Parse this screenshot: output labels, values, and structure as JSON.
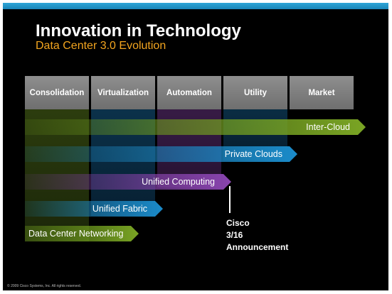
{
  "title": "Innovation in Technology",
  "subtitle": "Data Center 3.0 Evolution",
  "columns": [
    "Consolidation",
    "Virtualization",
    "Automation",
    "Utility",
    "Market"
  ],
  "arrows": [
    {
      "label": "Inter-Cloud",
      "color": "#6e9a1e"
    },
    {
      "label": "Private Clouds",
      "color": "#1d86c0"
    },
    {
      "label": "Unified Computing",
      "color": "#7e3fa0"
    },
    {
      "label": "Unified Fabric",
      "color": "#1d86c0"
    },
    {
      "label": "Data Center Networking",
      "color": "#6e9a1e"
    }
  ],
  "announcement": [
    "Cisco",
    "3/16",
    "Announcement"
  ],
  "copyright": "© 2009 Cisco Systems, Inc. All rights reserved.",
  "colors": {
    "accent_bar": "#1a85b8",
    "subtitle": "#f3a51f"
  }
}
